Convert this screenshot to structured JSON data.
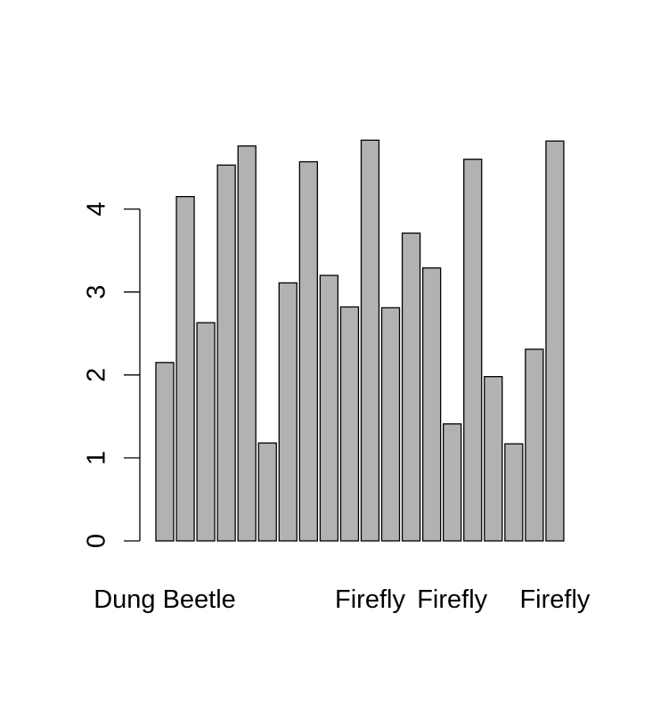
{
  "chart_data": {
    "type": "bar",
    "title": "",
    "xlabel": "",
    "ylabel": "",
    "ylim": [
      0,
      4.9
    ],
    "y_ticks": [
      "0",
      "1",
      "2",
      "3",
      "4"
    ],
    "categories": [
      "Dung Beetle",
      "",
      "",
      "",
      "",
      "",
      "",
      "",
      "",
      "",
      "Firefly",
      "",
      "",
      "",
      "Firefly",
      "",
      "",
      "",
      "",
      "Firefly"
    ],
    "values": [
      2.15,
      4.15,
      2.63,
      4.53,
      4.76,
      1.18,
      3.11,
      4.57,
      3.2,
      2.82,
      4.83,
      2.81,
      3.71,
      3.29,
      1.41,
      4.6,
      1.98,
      1.17,
      2.31,
      4.82
    ],
    "bar_color": "#b2b2b2",
    "grid": false,
    "legend": "none"
  }
}
